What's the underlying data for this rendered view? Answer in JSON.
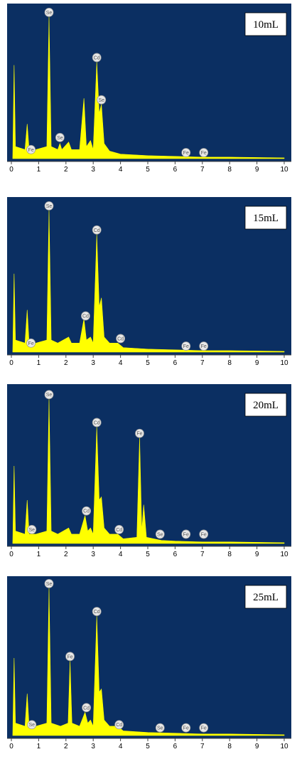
{
  "chart_data": [
    {
      "type": "area",
      "label": "10mL",
      "color": "#ffff00",
      "background": "#0b2f62",
      "xlim": [
        0,
        10
      ],
      "ylim": [
        0,
        100
      ],
      "xticks": [
        0,
        1,
        2,
        3,
        4,
        5,
        6,
        7,
        8,
        9,
        10
      ],
      "x": [
        0.05,
        0.1,
        0.15,
        0.5,
        0.58,
        0.65,
        0.9,
        1.3,
        1.38,
        1.46,
        1.7,
        1.78,
        1.85,
        2.1,
        2.2,
        2.5,
        2.66,
        2.75,
        2.9,
        3.0,
        3.13,
        3.22,
        3.3,
        3.4,
        3.6,
        4.0,
        5.0,
        6.0,
        7.0,
        8.0,
        10.0
      ],
      "values": [
        0,
        62,
        8,
        6,
        23,
        6,
        6,
        8,
        94,
        8,
        6,
        10,
        6,
        11,
        6,
        6,
        40,
        8,
        12,
        6,
        64,
        30,
        36,
        10,
        5,
        3,
        2,
        1.5,
        1,
        1,
        0.5
      ],
      "annotations": [
        {
          "text": "Se",
          "x": 1.38,
          "y": 97
        },
        {
          "text": "Cd",
          "x": 3.13,
          "y": 67
        },
        {
          "text": "Se",
          "x": 3.3,
          "y": 39
        },
        {
          "text": "Se",
          "x": 1.78,
          "y": 14
        },
        {
          "text": "Fe",
          "x": 0.72,
          "y": 6
        },
        {
          "text": "Fe",
          "x": 6.4,
          "y": 4
        },
        {
          "text": "Fe",
          "x": 7.05,
          "y": 4
        }
      ]
    },
    {
      "type": "area",
      "label": "15mL",
      "color": "#ffff00",
      "background": "#0b2f62",
      "xlim": [
        0,
        10
      ],
      "ylim": [
        0,
        100
      ],
      "xticks": [
        0,
        1,
        2,
        3,
        4,
        5,
        6,
        7,
        8,
        9,
        10
      ],
      "x": [
        0.05,
        0.1,
        0.15,
        0.5,
        0.58,
        0.65,
        0.9,
        1.3,
        1.38,
        1.46,
        1.7,
        2.1,
        2.2,
        2.5,
        2.66,
        2.75,
        2.9,
        3.0,
        3.13,
        3.22,
        3.3,
        3.4,
        3.6,
        3.9,
        4.1,
        5.0,
        6.0,
        7.0,
        8.0,
        10.0
      ],
      "values": [
        0,
        52,
        8,
        6,
        28,
        6,
        6,
        8,
        94,
        8,
        6,
        10,
        6,
        6,
        22,
        8,
        10,
        6,
        78,
        30,
        36,
        10,
        6,
        6,
        3,
        2,
        1.5,
        1,
        1,
        0.5
      ],
      "annotations": [
        {
          "text": "Se",
          "x": 1.38,
          "y": 97
        },
        {
          "text": "Cd",
          "x": 3.13,
          "y": 81
        },
        {
          "text": "Cd",
          "x": 2.72,
          "y": 24
        },
        {
          "text": "Cd",
          "x": 4.0,
          "y": 9
        },
        {
          "text": "Fe",
          "x": 0.72,
          "y": 6
        },
        {
          "text": "Fe",
          "x": 6.4,
          "y": 4
        },
        {
          "text": "Fe",
          "x": 7.05,
          "y": 4
        }
      ]
    },
    {
      "type": "area",
      "label": "20mL",
      "color": "#ffff00",
      "background": "#0b2f62",
      "xlim": [
        0,
        10
      ],
      "ylim": [
        0,
        100
      ],
      "xticks": [
        0,
        1,
        2,
        3,
        4,
        5,
        6,
        7,
        8,
        9,
        10
      ],
      "x": [
        0.05,
        0.1,
        0.15,
        0.5,
        0.58,
        0.65,
        0.9,
        1.3,
        1.38,
        1.46,
        1.7,
        2.1,
        2.2,
        2.5,
        2.7,
        2.8,
        2.9,
        3.0,
        3.13,
        3.22,
        3.3,
        3.4,
        3.6,
        3.9,
        4.1,
        4.6,
        4.7,
        4.78,
        4.85,
        4.95,
        5.5,
        6.0,
        7.0,
        8.0,
        10.0
      ],
      "values": [
        0,
        50,
        8,
        6,
        28,
        6,
        6,
        8,
        93,
        8,
        6,
        10,
        6,
        6,
        18,
        8,
        10,
        6,
        75,
        28,
        30,
        10,
        6,
        6,
        3,
        4,
        68,
        8,
        25,
        4,
        2,
        1.5,
        1,
        1,
        0.5
      ],
      "annotations": [
        {
          "text": "Se",
          "x": 1.38,
          "y": 96
        },
        {
          "text": "Cd",
          "x": 3.13,
          "y": 78
        },
        {
          "text": "Fe",
          "x": 4.7,
          "y": 71
        },
        {
          "text": "Cd",
          "x": 2.75,
          "y": 21
        },
        {
          "text": "Cd",
          "x": 3.95,
          "y": 9
        },
        {
          "text": "Se",
          "x": 0.75,
          "y": 9
        },
        {
          "text": "Se",
          "x": 5.45,
          "y": 6
        },
        {
          "text": "Fe",
          "x": 6.4,
          "y": 6
        },
        {
          "text": "Fe",
          "x": 7.05,
          "y": 6
        }
      ]
    },
    {
      "type": "area",
      "label": "25mL",
      "color": "#ffff00",
      "background": "#0b2f62",
      "xlim": [
        0,
        10
      ],
      "ylim": [
        0,
        100
      ],
      "xticks": [
        0,
        1,
        2,
        3,
        4,
        5,
        6,
        7,
        8,
        9,
        10
      ],
      "x": [
        0.05,
        0.1,
        0.15,
        0.5,
        0.58,
        0.65,
        0.9,
        1.3,
        1.38,
        1.46,
        1.8,
        2.08,
        2.15,
        2.22,
        2.5,
        2.7,
        2.8,
        2.9,
        3.0,
        3.13,
        3.22,
        3.3,
        3.4,
        3.6,
        3.9,
        4.1,
        5.0,
        6.0,
        7.0,
        8.0,
        10.0
      ],
      "values": [
        0,
        50,
        8,
        6,
        27,
        6,
        6,
        8,
        95,
        8,
        6,
        8,
        48,
        8,
        6,
        15,
        8,
        10,
        6,
        77,
        28,
        30,
        10,
        6,
        6,
        3,
        2,
        1.5,
        1,
        1,
        0.5
      ],
      "annotations": [
        {
          "text": "Se",
          "x": 1.38,
          "y": 98
        },
        {
          "text": "Cd",
          "x": 3.13,
          "y": 80
        },
        {
          "text": "Fe",
          "x": 2.15,
          "y": 51
        },
        {
          "text": "Cd",
          "x": 2.75,
          "y": 18
        },
        {
          "text": "Se",
          "x": 0.75,
          "y": 7
        },
        {
          "text": "Cd",
          "x": 3.95,
          "y": 7
        },
        {
          "text": "Se",
          "x": 5.45,
          "y": 5
        },
        {
          "text": "Fe",
          "x": 6.4,
          "y": 5
        },
        {
          "text": "Fe",
          "x": 7.05,
          "y": 5
        }
      ]
    }
  ]
}
